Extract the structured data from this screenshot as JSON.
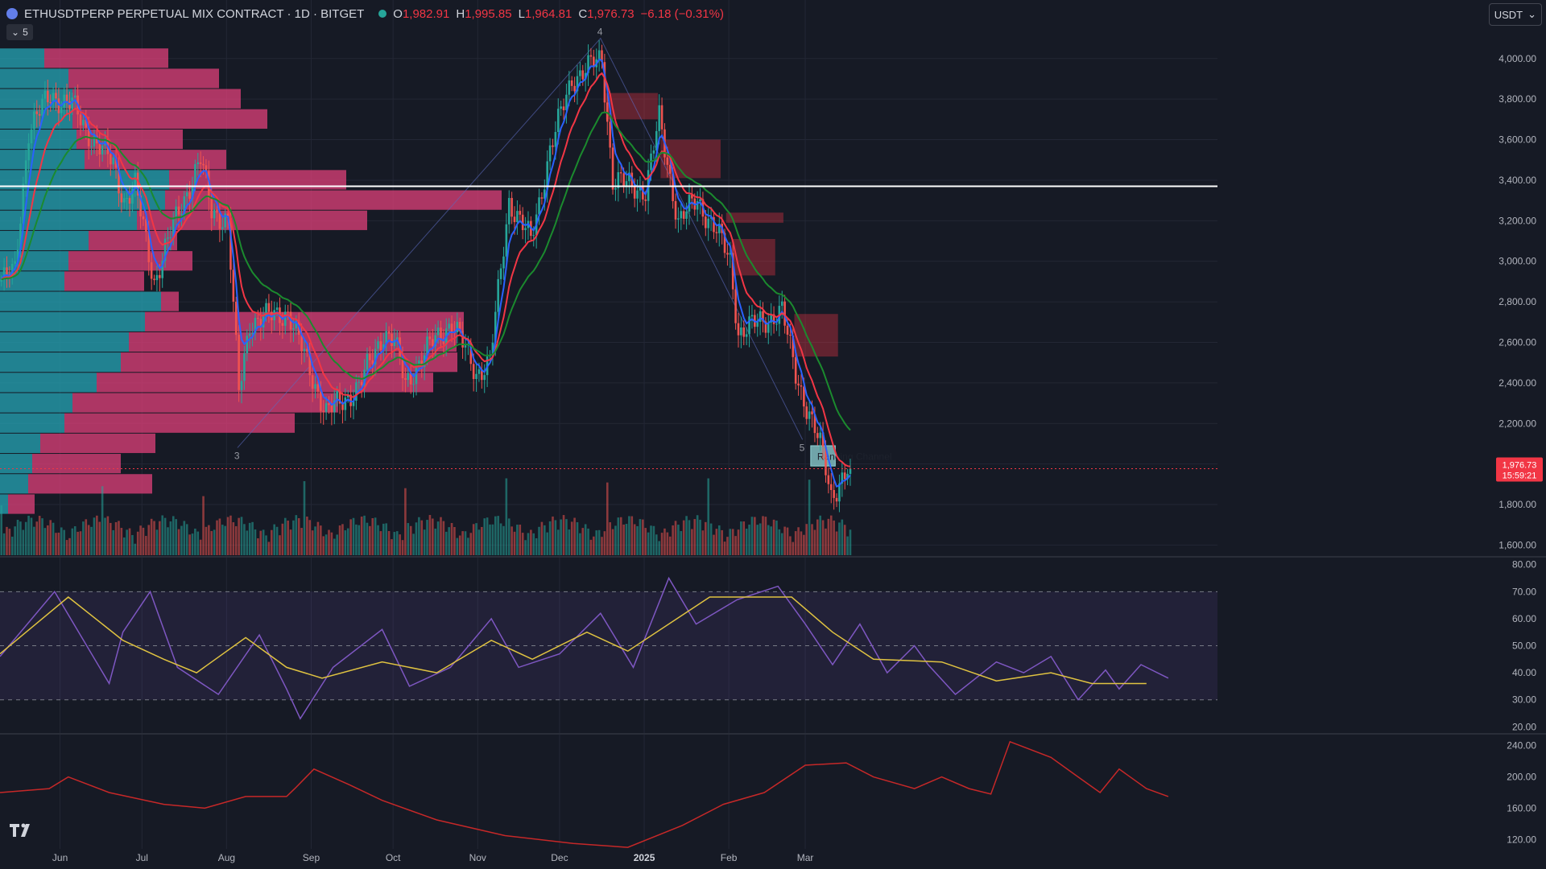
{
  "header": {
    "symbol": "ETHUSDTPERP PERPETUAL MIX CONTRACT · 1D · BITGET",
    "o_label": "O",
    "o": "1,982.91",
    "h_label": "H",
    "h": "1,995.85",
    "l_label": "L",
    "l": "1,964.81",
    "c_label": "C",
    "c": "1,976.73",
    "change": "−6.18 (−0.31%)"
  },
  "indicator_toggle": {
    "count": "5"
  },
  "currency_selector": {
    "value": "USDT"
  },
  "price_labels": {
    "last_price": "1,976.73",
    "countdown": "15:59:21"
  },
  "colors": {
    "bg": "#161a25",
    "up": "#26a69a",
    "down": "#ef5350",
    "ema_fast": "#2962ff",
    "ema_mid": "#f23645",
    "ema_slow": "#1b8a2e",
    "rsi": "#7e57c2",
    "rsi_ma": "#e0c341",
    "lower_line": "#c62828",
    "grid": "#232735",
    "text": "#b2b5be"
  },
  "chart_data": [
    {
      "type": "candlestick",
      "title": "ETHUSDTPERP PERPETUAL MIX CONTRACT · 1D · BITGET",
      "x_axis": {
        "tick_labels": [
          "Jun",
          "Jul",
          "Aug",
          "Sep",
          "Oct",
          "Nov",
          "Dec",
          "2025",
          "Feb",
          "Mar"
        ]
      },
      "y_axis": {
        "ylim": [
          1550,
          4150
        ],
        "tick_labels": [
          "1,600.00",
          "1,800.00",
          "2,000.00",
          "2,200.00",
          "2,400.00",
          "2,600.00",
          "2,800.00",
          "3,000.00",
          "3,200.00",
          "3,400.00",
          "3,600.00",
          "3,800.00",
          "4,000.00"
        ],
        "ticks": [
          1600,
          1800,
          2000,
          2200,
          2400,
          2600,
          2800,
          3000,
          3200,
          3400,
          3600,
          3800,
          4000
        ]
      },
      "price_path": [
        [
          "2024-05-11",
          2910
        ],
        [
          "2024-05-15",
          2950
        ],
        [
          "2024-05-20",
          3650
        ],
        [
          "2024-05-28",
          3820
        ],
        [
          "2024-06-05",
          3770
        ],
        [
          "2024-06-10",
          3650
        ],
        [
          "2024-06-20",
          3480
        ],
        [
          "2024-06-24",
          3300
        ],
        [
          "2024-06-28",
          3370
        ],
        [
          "2024-07-05",
          2900
        ],
        [
          "2024-07-14",
          3250
        ],
        [
          "2024-07-22",
          3500
        ],
        [
          "2024-07-26",
          3250
        ],
        [
          "2024-08-01",
          3200
        ],
        [
          "2024-08-05",
          2350
        ],
        [
          "2024-08-09",
          2700
        ],
        [
          "2024-08-23",
          2750
        ],
        [
          "2024-09-06",
          2250
        ],
        [
          "2024-09-18",
          2380
        ],
        [
          "2024-09-27",
          2650
        ],
        [
          "2024-10-01",
          2600
        ],
        [
          "2024-10-05",
          2400
        ],
        [
          "2024-10-15",
          2600
        ],
        [
          "2024-10-22",
          2700
        ],
        [
          "2024-10-31",
          2450
        ],
        [
          "2024-11-05",
          2500
        ],
        [
          "2024-11-12",
          3300
        ],
        [
          "2024-11-20",
          3100
        ],
        [
          "2024-11-27",
          3550
        ],
        [
          "2024-12-05",
          3900
        ],
        [
          "2024-12-16",
          4000
        ],
        [
          "2024-12-20",
          3400
        ],
        [
          "2025-01-01",
          3350
        ],
        [
          "2025-01-06",
          3700
        ],
        [
          "2025-01-13",
          3200
        ],
        [
          "2025-01-20",
          3300
        ],
        [
          "2025-01-27",
          3150
        ],
        [
          "2025-02-01",
          3000
        ],
        [
          "2025-02-04",
          2650
        ],
        [
          "2025-02-20",
          2750
        ],
        [
          "2025-02-25",
          2450
        ],
        [
          "2025-03-03",
          2200
        ],
        [
          "2025-03-07",
          2050
        ],
        [
          "2025-03-10",
          1850
        ],
        [
          "2025-03-17",
          1977
        ]
      ],
      "last": {
        "open": 1982.91,
        "high": 1995.85,
        "low": 1964.81,
        "close": 1976.73,
        "change": -6.18,
        "change_pct": -0.31
      },
      "horizontal_line": 3370,
      "series": [
        {
          "name": "",
          "type": "ema_fast",
          "color": "#2962ff"
        },
        {
          "name": "",
          "type": "ema_mid",
          "color": "#f23645"
        },
        {
          "name": "",
          "type": "ema_slow",
          "color": "#1b8a2e"
        }
      ],
      "zones": [
        {
          "from": "2024-12-18",
          "to": "2025-01-06",
          "low": 3700,
          "high": 3830,
          "label": ""
        },
        {
          "from": "2025-01-07",
          "to": "2025-01-29",
          "low": 3410,
          "high": 3600,
          "label": ""
        },
        {
          "from": "2025-01-31",
          "to": "2025-02-21",
          "low": 3190,
          "high": 3240,
          "label": ""
        },
        {
          "from": "2025-02-02",
          "to": "2025-02-18",
          "low": 2930,
          "high": 3110,
          "label": ""
        },
        {
          "from": "2025-02-25",
          "to": "2025-03-13",
          "low": 2530,
          "high": 2740,
          "label": ""
        },
        {
          "from": "2025-03-03",
          "to": "2025-03-12",
          "low": 1990,
          "high": 2090,
          "label": "Ranging Channel"
        }
      ],
      "wave_labels": [
        {
          "x": "2024-08-05",
          "y": 2080,
          "label": "3"
        },
        {
          "x": "2024-12-16",
          "y": 4100,
          "label": "4"
        },
        {
          "x": "2025-02-28",
          "y": 2120,
          "label": "5"
        }
      ],
      "volume_profile": {
        "price_rows": [
          4000,
          3900,
          3800,
          3700,
          3600,
          3500,
          3400,
          3300,
          3200,
          3100,
          3000,
          2900,
          2800,
          2700,
          2600,
          2500,
          2400,
          2300,
          2200,
          2100,
          2000,
          1900,
          1800
        ],
        "buy": [
          55,
          85,
          90,
          90,
          95,
          105,
          210,
          205,
          170,
          110,
          85,
          80,
          200,
          180,
          160,
          150,
          120,
          90,
          80,
          50,
          40,
          35,
          10
        ],
        "sell": [
          70,
          85,
          95,
          110,
          60,
          80,
          100,
          190,
          130,
          50,
          70,
          45,
          10,
          180,
          185,
          190,
          190,
          150,
          130,
          65,
          50,
          70,
          15
        ]
      },
      "volume": {
        "note": "daily volume histogram"
      }
    },
    {
      "type": "line",
      "title": "",
      "y_axis": {
        "ylim": [
          18,
          82
        ],
        "tick_labels": [
          "20.00",
          "30.00",
          "40.00",
          "50.00",
          "60.00",
          "70.00",
          "80.00"
        ],
        "ticks": [
          20,
          30,
          40,
          50,
          60,
          70,
          80
        ]
      },
      "band": [
        30,
        70
      ],
      "midline": 50,
      "series": [
        {
          "name": "",
          "type": "rsi",
          "color": "#7e57c2",
          "values": [
            [
              0,
              46
            ],
            [
              20,
              70
            ],
            [
              40,
              36
            ],
            [
              45,
              55
            ],
            [
              55,
              70
            ],
            [
              65,
              42
            ],
            [
              80,
              32
            ],
            [
              95,
              54
            ],
            [
              105,
              34
            ],
            [
              110,
              23
            ],
            [
              122,
              42
            ],
            [
              140,
              56
            ],
            [
              150,
              35
            ],
            [
              165,
              42
            ],
            [
              180,
              60
            ],
            [
              190,
              42
            ],
            [
              205,
              47
            ],
            [
              220,
              62
            ],
            [
              232,
              42
            ],
            [
              245,
              75
            ],
            [
              255,
              58
            ],
            [
              270,
              67
            ],
            [
              285,
              72
            ],
            [
              295,
              58
            ],
            [
              305,
              43
            ],
            [
              315,
              58
            ],
            [
              325,
              40
            ],
            [
              335,
              50
            ],
            [
              340,
              43
            ],
            [
              350,
              32
            ],
            [
              365,
              44
            ],
            [
              375,
              40
            ],
            [
              385,
              46
            ],
            [
              395,
              30
            ],
            [
              405,
              41
            ],
            [
              410,
              34
            ],
            [
              418,
              43
            ],
            [
              428,
              38
            ]
          ]
        },
        {
          "name": "",
          "type": "rsi_ma",
          "color": "#e0c341",
          "values": [
            [
              0,
              47
            ],
            [
              25,
              68
            ],
            [
              45,
              52
            ],
            [
              60,
              45
            ],
            [
              72,
              40
            ],
            [
              90,
              53
            ],
            [
              105,
              42
            ],
            [
              118,
              38
            ],
            [
              140,
              44
            ],
            [
              160,
              40
            ],
            [
              180,
              52
            ],
            [
              195,
              45
            ],
            [
              215,
              55
            ],
            [
              230,
              48
            ],
            [
              260,
              68
            ],
            [
              290,
              68
            ],
            [
              305,
              55
            ],
            [
              320,
              45
            ],
            [
              345,
              44
            ],
            [
              365,
              37
            ],
            [
              385,
              40
            ],
            [
              400,
              36
            ],
            [
              420,
              36
            ]
          ]
        }
      ]
    },
    {
      "type": "line",
      "title": "",
      "y_axis": {
        "ylim": [
          108,
          252
        ],
        "tick_labels": [
          "120.00",
          "160.00",
          "200.00",
          "240.00"
        ],
        "ticks": [
          120,
          160,
          200,
          240
        ]
      },
      "series": [
        {
          "name": "",
          "color": "#c62828",
          "values": [
            [
              0,
              180
            ],
            [
              18,
              185
            ],
            [
              25,
              200
            ],
            [
              40,
              180
            ],
            [
              60,
              165
            ],
            [
              75,
              160
            ],
            [
              90,
              175
            ],
            [
              105,
              175
            ],
            [
              108,
              185
            ],
            [
              115,
              210
            ],
            [
              128,
              190
            ],
            [
              140,
              170
            ],
            [
              160,
              145
            ],
            [
              185,
              125
            ],
            [
              210,
              115
            ],
            [
              230,
              110
            ],
            [
              250,
              138
            ],
            [
              265,
              165
            ],
            [
              280,
              180
            ],
            [
              295,
              215
            ],
            [
              310,
              218
            ],
            [
              320,
              200
            ],
            [
              335,
              185
            ],
            [
              345,
              200
            ],
            [
              355,
              185
            ],
            [
              363,
              178
            ],
            [
              370,
              245
            ],
            [
              385,
              225
            ],
            [
              395,
              200
            ],
            [
              403,
              180
            ],
            [
              410,
              210
            ],
            [
              420,
              185
            ],
            [
              428,
              175
            ]
          ]
        }
      ]
    }
  ]
}
